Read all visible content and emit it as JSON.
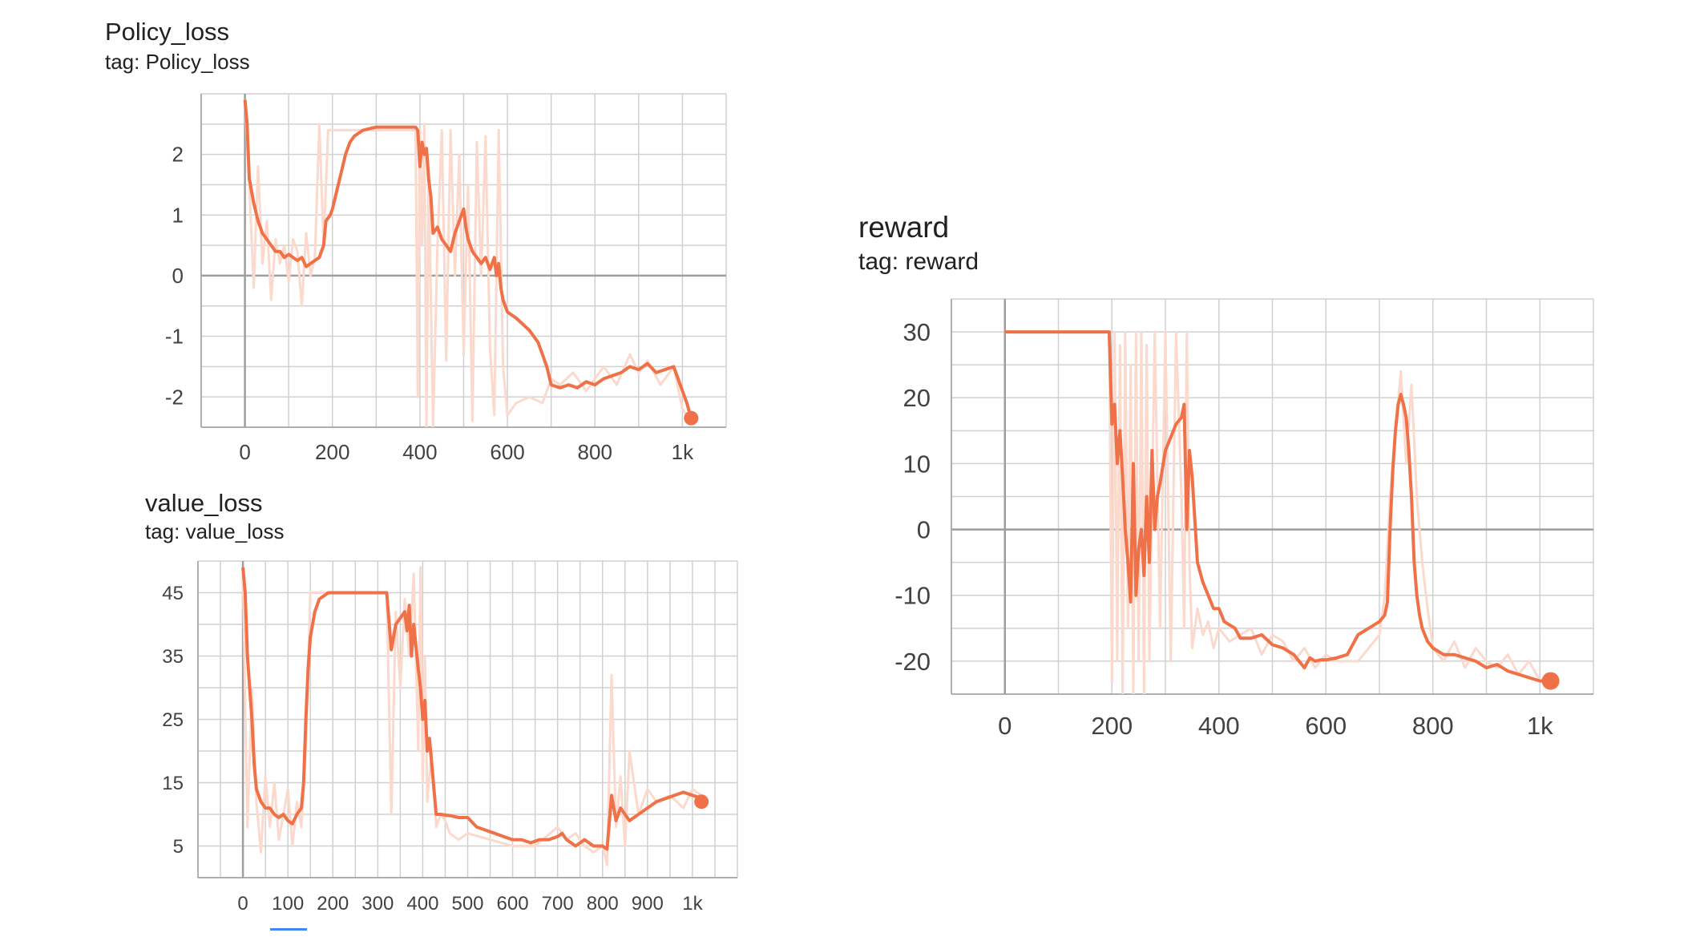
{
  "colors": {
    "smoothed": "#f07148",
    "raw": "#fbd9cd",
    "grid": "#d0d0d0",
    "axis": "#9e9e9e"
  },
  "chart_data": [
    {
      "type": "line",
      "title": "Policy_loss",
      "tag": "tag: Policy_loss",
      "xlim": [
        -100,
        1100
      ],
      "ylim": [
        -2.5,
        3.0
      ],
      "x_ticks": [
        0,
        200,
        400,
        600,
        800,
        1000
      ],
      "x_tick_labels": [
        "0",
        "200",
        "400",
        "600",
        "800",
        "1k"
      ],
      "y_ticks": [
        2,
        1,
        0,
        -1,
        -2
      ],
      "y_tick_labels": [
        "2",
        "1",
        "0",
        "-1",
        "-2"
      ],
      "grid": true,
      "series": [
        {
          "kind": "raw",
          "x": [
            0,
            10,
            20,
            30,
            40,
            50,
            60,
            70,
            80,
            90,
            100,
            110,
            120,
            130,
            140,
            150,
            160,
            170,
            180,
            190,
            200,
            220,
            250,
            280,
            300,
            330,
            360,
            390,
            395,
            400,
            405,
            410,
            415,
            420,
            430,
            440,
            450,
            460,
            470,
            480,
            490,
            500,
            510,
            520,
            530,
            540,
            550,
            560,
            570,
            580,
            590,
            600,
            620,
            650,
            680,
            700,
            720,
            750,
            780,
            800,
            820,
            850,
            880,
            900,
            920,
            950,
            980,
            1000,
            1020
          ],
          "y": [
            2.9,
            1.5,
            -0.2,
            1.8,
            0.2,
            0.9,
            -0.4,
            0.6,
            0.2,
            0.5,
            -0.1,
            0.6,
            0.4,
            -0.5,
            0.7,
            0.0,
            0.3,
            2.5,
            0.5,
            2.4,
            2.4,
            2.4,
            2.4,
            2.4,
            2.4,
            2.4,
            2.4,
            2.4,
            -2.0,
            2.4,
            0.5,
            2.5,
            -2.5,
            1.8,
            -2.5,
            0.5,
            2.4,
            -1.4,
            2.4,
            0.0,
            2.0,
            -1.3,
            1.5,
            -2.4,
            2.2,
            0.0,
            2.3,
            -1.2,
            -2.3,
            2.4,
            -1.5,
            -2.3,
            -2.1,
            -2.0,
            -2.1,
            -1.7,
            -1.8,
            -1.6,
            -1.9,
            -1.7,
            -1.5,
            -1.8,
            -1.3,
            -1.6,
            -1.4,
            -1.8,
            -1.5,
            -2.2,
            -2.4
          ]
        },
        {
          "kind": "smoothed",
          "x": [
            0,
            5,
            10,
            20,
            30,
            40,
            50,
            60,
            70,
            80,
            90,
            100,
            110,
            120,
            130,
            140,
            150,
            160,
            170,
            180,
            185,
            195,
            200,
            210,
            220,
            230,
            240,
            250,
            270,
            300,
            330,
            360,
            390,
            395,
            400,
            405,
            410,
            415,
            420,
            425,
            430,
            440,
            450,
            460,
            470,
            480,
            490,
            500,
            505,
            510,
            520,
            530,
            540,
            550,
            560,
            570,
            575,
            580,
            585,
            590,
            600,
            620,
            650,
            670,
            680,
            690,
            700,
            720,
            740,
            760,
            780,
            800,
            820,
            840,
            860,
            880,
            900,
            920,
            940,
            960,
            980,
            1000,
            1010,
            1020
          ],
          "y": [
            2.9,
            2.5,
            1.6,
            1.2,
            0.9,
            0.7,
            0.6,
            0.5,
            0.4,
            0.4,
            0.3,
            0.35,
            0.3,
            0.25,
            0.3,
            0.15,
            0.2,
            0.25,
            0.3,
            0.5,
            0.9,
            1.0,
            1.1,
            1.4,
            1.7,
            2.0,
            2.2,
            2.3,
            2.4,
            2.45,
            2.45,
            2.45,
            2.45,
            2.4,
            1.8,
            2.2,
            2.0,
            2.1,
            1.6,
            1.3,
            0.7,
            0.8,
            0.6,
            0.5,
            0.4,
            0.7,
            0.9,
            1.1,
            0.8,
            0.6,
            0.4,
            0.3,
            0.2,
            0.3,
            0.1,
            0.3,
            0.0,
            0.2,
            -0.2,
            -0.4,
            -0.6,
            -0.7,
            -0.9,
            -1.1,
            -1.3,
            -1.5,
            -1.8,
            -1.85,
            -1.8,
            -1.85,
            -1.75,
            -1.8,
            -1.7,
            -1.65,
            -1.6,
            -1.5,
            -1.55,
            -1.45,
            -1.6,
            -1.55,
            -1.5,
            -1.9,
            -2.1,
            -2.35
          ]
        }
      ]
    },
    {
      "type": "line",
      "title": "value_loss",
      "tag": "tag: value_loss",
      "xlim": [
        -100,
        1100
      ],
      "ylim": [
        0,
        50
      ],
      "x_ticks": [
        0,
        100,
        200,
        300,
        400,
        500,
        600,
        700,
        800,
        900,
        1000
      ],
      "x_tick_labels": [
        "0",
        "100",
        "200",
        "300",
        "400",
        "500",
        "600",
        "700",
        "800",
        "900",
        "1k"
      ],
      "y_ticks": [
        45,
        35,
        25,
        15,
        5
      ],
      "y_tick_labels": [
        "45",
        "35",
        "25",
        "15",
        "5"
      ],
      "grid": true,
      "series": [
        {
          "kind": "raw",
          "x": [
            0,
            10,
            20,
            30,
            40,
            50,
            60,
            70,
            80,
            90,
            100,
            110,
            120,
            130,
            140,
            150,
            180,
            220,
            260,
            300,
            320,
            330,
            340,
            350,
            360,
            370,
            380,
            390,
            395,
            400,
            405,
            410,
            420,
            430,
            440,
            450,
            460,
            480,
            500,
            550,
            600,
            650,
            700,
            720,
            740,
            760,
            780,
            800,
            810,
            820,
            830,
            840,
            850,
            860,
            880,
            900,
            920,
            950,
            980,
            1000,
            1020
          ],
          "y": [
            48,
            8,
            30,
            12,
            4,
            16,
            8,
            15,
            6,
            10,
            14,
            5,
            12,
            8,
            20,
            45,
            45,
            45,
            45,
            45,
            45,
            10,
            42,
            30,
            44,
            35,
            48,
            20,
            49,
            15,
            35,
            12,
            20,
            8,
            10,
            9,
            7,
            6,
            7,
            6,
            5,
            5,
            8,
            6,
            7,
            5,
            4,
            5,
            2,
            32,
            8,
            16,
            5,
            20,
            10,
            14,
            12,
            13,
            11,
            14,
            13
          ]
        },
        {
          "kind": "smoothed",
          "x": [
            0,
            5,
            10,
            15,
            20,
            25,
            30,
            35,
            40,
            50,
            60,
            70,
            80,
            90,
            100,
            110,
            120,
            130,
            135,
            140,
            145,
            150,
            160,
            170,
            180,
            190,
            200,
            220,
            250,
            280,
            300,
            320,
            330,
            340,
            350,
            360,
            365,
            370,
            375,
            380,
            390,
            395,
            400,
            405,
            410,
            415,
            420,
            430,
            440,
            460,
            480,
            500,
            520,
            540,
            560,
            580,
            600,
            620,
            640,
            660,
            680,
            700,
            710,
            720,
            730,
            740,
            760,
            780,
            800,
            810,
            820,
            830,
            840,
            850,
            860,
            880,
            900,
            920,
            940,
            960,
            980,
            1000,
            1010,
            1020
          ],
          "y": [
            49,
            45,
            35,
            30,
            25,
            18,
            14,
            13,
            12,
            11,
            11,
            10,
            9.5,
            10,
            9,
            8.5,
            10,
            11,
            15,
            25,
            33,
            38,
            42,
            44,
            44.5,
            45,
            45,
            45,
            45,
            45,
            45,
            45,
            36,
            40,
            41,
            42,
            39,
            43,
            35,
            40,
            33,
            30,
            25,
            28,
            20,
            22,
            18,
            10,
            10,
            9.8,
            9.5,
            9.5,
            8,
            7.5,
            7,
            6.5,
            6,
            6,
            5.5,
            6,
            6,
            6.5,
            7,
            6,
            5.5,
            5,
            6,
            5,
            5,
            4.5,
            13,
            9,
            11,
            10,
            9,
            10,
            11,
            12,
            12.5,
            13,
            13.5,
            13,
            12.8,
            12
          ]
        }
      ]
    },
    {
      "type": "line",
      "title": "reward",
      "tag": "tag: reward",
      "xlim": [
        -100,
        1100
      ],
      "ylim": [
        -25,
        35
      ],
      "x_ticks": [
        0,
        200,
        400,
        600,
        800,
        1000
      ],
      "x_tick_labels": [
        "0",
        "200",
        "400",
        "600",
        "800",
        "1k"
      ],
      "y_ticks": [
        30,
        20,
        10,
        0,
        -10,
        -20
      ],
      "y_tick_labels": [
        "30",
        "20",
        "10",
        "0",
        "-10",
        "-20"
      ],
      "grid": true,
      "series": [
        {
          "kind": "raw",
          "x": [
            0,
            50,
            100,
            150,
            195,
            200,
            205,
            210,
            215,
            220,
            225,
            230,
            235,
            240,
            245,
            250,
            255,
            260,
            265,
            270,
            280,
            290,
            300,
            310,
            320,
            330,
            335,
            340,
            345,
            350,
            360,
            370,
            380,
            390,
            400,
            420,
            440,
            460,
            480,
            500,
            520,
            540,
            560,
            580,
            600,
            620,
            640,
            660,
            680,
            700,
            710,
            720,
            730,
            740,
            750,
            760,
            770,
            780,
            790,
            800,
            820,
            840,
            860,
            880,
            900,
            920,
            940,
            960,
            980,
            1000,
            1020
          ],
          "y": [
            30,
            30,
            30,
            30,
            30,
            -23,
            30,
            -20,
            28,
            -25,
            30,
            -15,
            25,
            -25,
            30,
            -20,
            30,
            -25,
            28,
            -20,
            30,
            -15,
            30,
            -20,
            30,
            5,
            -15,
            30,
            -5,
            -18,
            -12,
            -16,
            -14,
            -18,
            -15,
            -17,
            -16,
            -15,
            -19,
            -16,
            -17,
            -20,
            -18,
            -21,
            -19,
            -20,
            -20,
            -20,
            -18,
            -16,
            -10,
            5,
            15,
            24,
            10,
            22,
            5,
            -5,
            -12,
            -18,
            -20,
            -17,
            -21,
            -18,
            -20,
            -21,
            -19,
            -22,
            -20,
            -23,
            -22
          ]
        },
        {
          "kind": "smoothed",
          "x": [
            0,
            50,
            100,
            150,
            195,
            200,
            205,
            210,
            215,
            220,
            225,
            230,
            235,
            240,
            245,
            250,
            255,
            260,
            265,
            270,
            275,
            280,
            285,
            290,
            300,
            310,
            320,
            330,
            335,
            340,
            345,
            350,
            360,
            370,
            380,
            390,
            400,
            410,
            420,
            430,
            440,
            460,
            480,
            500,
            520,
            540,
            560,
            570,
            580,
            590,
            600,
            620,
            640,
            660,
            680,
            700,
            710,
            715,
            720,
            725,
            730,
            735,
            740,
            745,
            750,
            755,
            760,
            765,
            770,
            775,
            780,
            785,
            790,
            800,
            820,
            840,
            860,
            880,
            900,
            920,
            940,
            960,
            980,
            1000,
            1010,
            1020
          ],
          "y": [
            30,
            30,
            30,
            30,
            30,
            16,
            19,
            10,
            15,
            8,
            0,
            -5,
            -11,
            10,
            -10,
            -3,
            0,
            -7,
            5,
            -5,
            12,
            0,
            5,
            7,
            12,
            14,
            16,
            17,
            19,
            0,
            12,
            8,
            -5,
            -8,
            -10,
            -12,
            -12,
            -14,
            -14.5,
            -15,
            -16.5,
            -16.5,
            -16,
            -17.5,
            -18,
            -19,
            -21,
            -19.5,
            -20,
            -19.8,
            -19.8,
            -19.5,
            -19,
            -16,
            -15,
            -14,
            -13,
            -11,
            0,
            9,
            15,
            19,
            20.5,
            19,
            17,
            12,
            5,
            -5,
            -10,
            -13,
            -15,
            -16,
            -17,
            -18,
            -19,
            -19,
            -19.5,
            -20,
            -21,
            -20.5,
            -21.5,
            -22,
            -22.5,
            -23,
            -23,
            -23
          ]
        }
      ]
    }
  ]
}
